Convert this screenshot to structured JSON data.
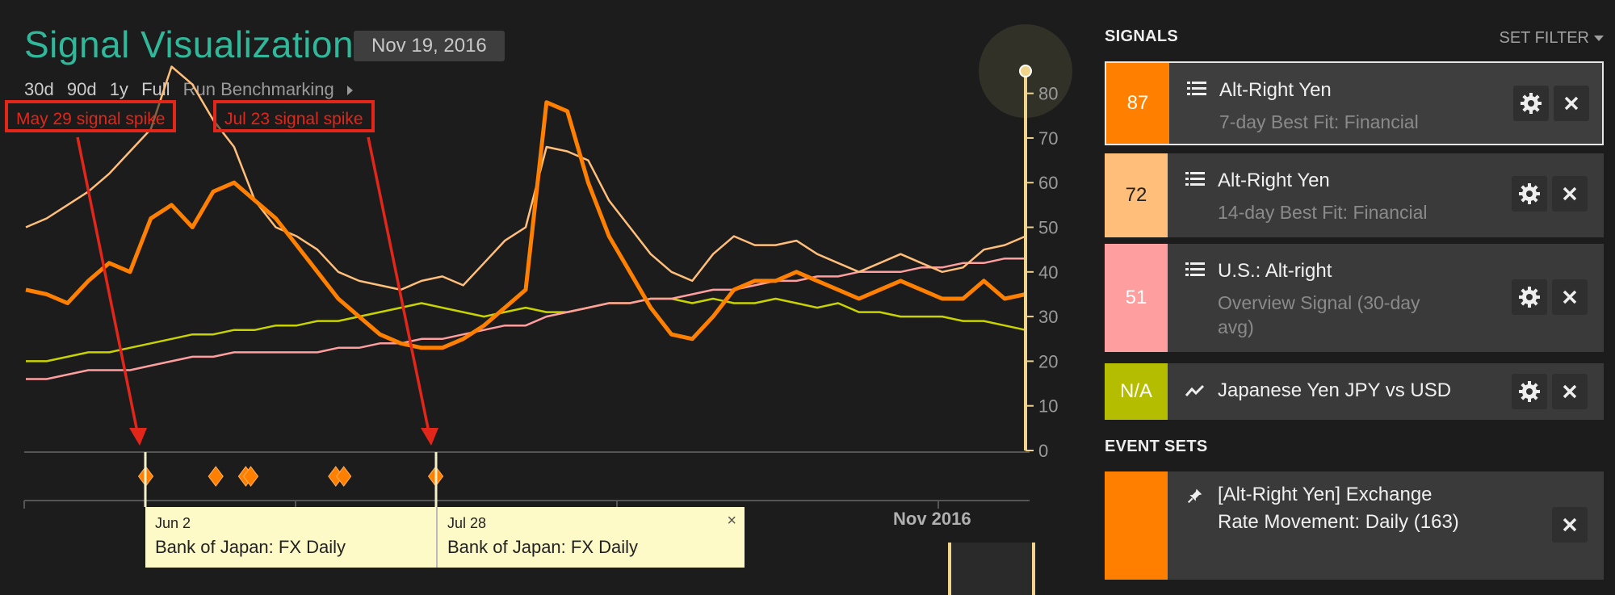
{
  "header": {
    "title": "Signal Visualization",
    "date": "Nov 19, 2016",
    "ranges": [
      "30d",
      "90d",
      "1y",
      "Full"
    ],
    "benchmark_label": "Run Benchmarking"
  },
  "annotations": [
    "May 29 signal spike",
    "Jul 23 signal spike"
  ],
  "tooltips": [
    {
      "date": "Jun 2",
      "name": "Bank of Japan: FX Daily"
    },
    {
      "date": "Jul 28",
      "name": "Bank of Japan: FX Daily",
      "close": "×"
    }
  ],
  "timeline": {
    "label": "Nov 2016"
  },
  "signals_panel": {
    "heading": "SIGNALS",
    "set_filter": "SET FILTER",
    "items": [
      {
        "value": "87",
        "name": "Alt-Right Yen",
        "sub": "7-day Best Fit: Financial",
        "color": "#ff8000",
        "icon": "list-icon"
      },
      {
        "value": "72",
        "name": "Alt-Right Yen",
        "sub": "14-day Best Fit: Financial",
        "color": "#ffbe7a",
        "icon": "list-icon"
      },
      {
        "value": "51",
        "name": "U.S.: Alt-right",
        "sub": "Overview Signal (30-day avg)",
        "color": "#ff9e9e",
        "icon": "list-icon"
      },
      {
        "value": "N/A",
        "name": "Japanese Yen JPY vs USD",
        "sub": "",
        "color": "#b5bd00",
        "icon": "line-chart-icon"
      }
    ]
  },
  "event_sets": {
    "heading": "EVENT SETS",
    "items": [
      {
        "name": "[Alt-Right Yen] Exchange Rate Movement: Daily (163)",
        "color": "#ff8000",
        "icon": "pin-icon"
      }
    ]
  },
  "chart_data": {
    "type": "line",
    "ylim": [
      0,
      85
    ],
    "yticks": [
      "80",
      "70",
      "60",
      "50",
      "40",
      "30",
      "20",
      "10",
      "0"
    ],
    "ytick_values": [
      80,
      70,
      60,
      50,
      40,
      30,
      20,
      10,
      0
    ],
    "x": [
      0,
      1,
      2,
      3,
      4,
      5,
      6,
      7,
      8,
      9,
      10,
      11,
      12,
      13,
      14,
      15,
      16,
      17,
      18,
      19,
      20,
      21,
      22,
      23,
      24,
      25,
      26,
      27,
      28,
      29,
      30,
      31,
      32,
      33,
      34,
      35,
      36,
      37,
      38,
      39,
      40,
      41,
      42,
      43,
      44,
      45,
      46,
      47,
      48
    ],
    "series": [
      {
        "color": "#ff8000",
        "width": 5,
        "values": [
          36,
          35,
          33,
          38,
          42,
          40,
          52,
          55,
          50,
          58,
          60,
          56,
          52,
          46,
          40,
          34,
          30,
          26,
          24,
          23,
          23,
          25,
          28,
          32,
          36,
          78,
          76,
          60,
          48,
          40,
          32,
          26,
          25,
          30,
          36,
          38,
          38,
          40,
          38,
          36,
          34,
          36,
          38,
          36,
          34,
          34,
          38,
          34,
          35
        ]
      },
      {
        "color": "#ffbe7a",
        "width": 2.5,
        "values": [
          50,
          52,
          55,
          58,
          62,
          67,
          72,
          86,
          82,
          74,
          68,
          56,
          50,
          48,
          45,
          40,
          38,
          37,
          36,
          38,
          39,
          37,
          42,
          47,
          50,
          68,
          67,
          65,
          56,
          50,
          44,
          40,
          38,
          44,
          48,
          46,
          46,
          47,
          44,
          42,
          40,
          42,
          44,
          42,
          40,
          41,
          45,
          46,
          48
        ]
      },
      {
        "color": "#ff9e9e",
        "width": 2.5,
        "values": [
          16,
          16,
          17,
          18,
          18,
          18,
          19,
          20,
          21,
          21,
          22,
          22,
          22,
          22,
          22,
          23,
          23,
          24,
          24,
          25,
          25,
          26,
          27,
          28,
          28,
          30,
          31,
          32,
          33,
          33,
          34,
          34,
          35,
          36,
          36,
          37,
          38,
          38,
          39,
          39,
          40,
          40,
          40,
          41,
          41,
          42,
          42,
          43,
          43
        ]
      },
      {
        "color": "#c9d300",
        "width": 2.5,
        "values": [
          20,
          20,
          21,
          22,
          22,
          23,
          24,
          25,
          26,
          26,
          27,
          27,
          28,
          28,
          29,
          29,
          30,
          31,
          32,
          33,
          32,
          31,
          30,
          31,
          32,
          31,
          31,
          32,
          33,
          33,
          34,
          34,
          33,
          34,
          33,
          33,
          34,
          33,
          32,
          33,
          31,
          31,
          30,
          30,
          30,
          29,
          29,
          28,
          27
        ]
      }
    ],
    "event_markers": [
      0.12,
      0.19,
      0.22,
      0.225,
      0.31,
      0.318,
      0.41
    ]
  }
}
